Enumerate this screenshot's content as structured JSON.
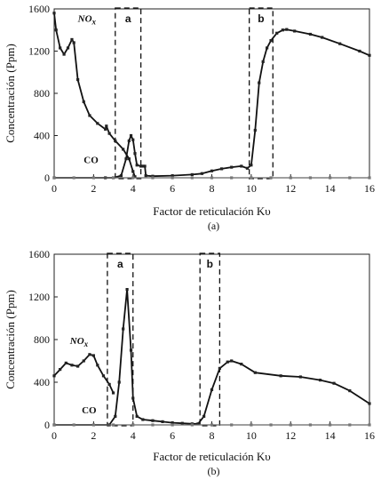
{
  "chart_data": [
    {
      "type": "line",
      "caption": "(a)",
      "xlabel": "Factor de reticulación Kυ",
      "ylabel": "Concentración (Ppm)",
      "xlim": [
        0,
        16
      ],
      "ylim": [
        0,
        1600
      ],
      "x_ticks": [
        "0",
        "2",
        "4",
        "6",
        "8",
        "10",
        "12",
        "14",
        "16"
      ],
      "y_ticks": [
        "0",
        "400",
        "800",
        "1200",
        "1600"
      ],
      "grid": false,
      "series": [
        {
          "name": "NOx",
          "x": [
            0,
            0.1,
            0.3,
            0.5,
            0.7,
            0.9,
            1.0,
            1.2,
            1.5,
            1.8,
            2.2,
            2.6,
            2.65,
            2.8,
            3.1,
            3.5,
            3.8,
            4.0,
            4.1
          ],
          "y": [
            1560,
            1400,
            1230,
            1170,
            1230,
            1310,
            1280,
            930,
            720,
            590,
            515,
            460,
            490,
            420,
            350,
            270,
            180,
            60,
            10
          ]
        },
        {
          "name": "CO",
          "x": [
            0,
            2.6,
            3.0,
            3.4,
            3.65,
            3.8,
            3.9,
            4.0,
            4.1,
            4.2,
            4.4,
            4.5,
            4.6,
            4.65,
            5.0,
            6.0,
            7.0,
            7.5,
            8.0,
            8.5,
            9.0,
            9.5,
            9.8,
            10.0,
            10.2,
            10.4,
            10.6,
            10.8,
            11.0,
            11.3,
            11.6,
            11.8,
            12.2,
            13.0,
            13.6,
            14.5,
            15.5,
            16.0
          ],
          "y": [
            0,
            0,
            0,
            20,
            180,
            350,
            400,
            360,
            230,
            120,
            110,
            110,
            110,
            20,
            15,
            20,
            30,
            40,
            65,
            85,
            100,
            110,
            90,
            120,
            450,
            900,
            1100,
            1230,
            1300,
            1370,
            1400,
            1405,
            1390,
            1360,
            1330,
            1270,
            1200,
            1160
          ]
        },
        {
          "name": "",
          "x": [
            0,
            1,
            2,
            3,
            4,
            5,
            6,
            7,
            8,
            9,
            10,
            11,
            12,
            13,
            14,
            15,
            16
          ],
          "y": [
            0,
            0,
            0,
            0,
            0,
            0,
            0,
            0,
            0,
            0,
            0,
            0,
            0,
            0,
            0,
            0,
            0
          ]
        }
      ],
      "labels": [
        {
          "text": "NO",
          "sub": "x",
          "x": 1.2,
          "y": 1480
        },
        {
          "text": "CO",
          "x": 1.5,
          "y": 140
        }
      ],
      "regions": [
        {
          "label": "a",
          "x": [
            3.1,
            4.4
          ]
        },
        {
          "label": "b",
          "x": [
            9.9,
            11.1
          ]
        }
      ]
    },
    {
      "type": "line",
      "caption": "(b)",
      "xlabel": "Factor de reticulación Kυ",
      "ylabel": "Concentración (Ppm)",
      "xlim": [
        0,
        16
      ],
      "ylim": [
        0,
        1600
      ],
      "x_ticks": [
        "0",
        "2",
        "4",
        "6",
        "8",
        "10",
        "12",
        "14",
        "16"
      ],
      "y_ticks": [
        "0",
        "400",
        "800",
        "1200",
        "1600"
      ],
      "grid": false,
      "series": [
        {
          "name": "NOx",
          "x": [
            0,
            0.3,
            0.6,
            0.9,
            1.2,
            1.5,
            1.8,
            2.0,
            2.2,
            2.5,
            2.8,
            3.0
          ],
          "y": [
            460,
            520,
            580,
            560,
            550,
            600,
            660,
            650,
            560,
            460,
            380,
            300
          ]
        },
        {
          "name": "CO",
          "x": [
            0,
            2.8,
            3.1,
            3.3,
            3.5,
            3.7,
            3.9,
            4.0,
            4.2,
            4.5,
            5.0,
            5.5,
            6.0,
            6.5,
            7.0,
            7.3,
            7.6,
            8.0,
            8.4,
            8.8,
            9.0,
            9.5,
            10.2,
            11.5,
            12.5,
            13.5,
            14.2,
            15.0,
            16.0
          ],
          "y": [
            0,
            0,
            80,
            400,
            900,
            1270,
            700,
            250,
            80,
            50,
            40,
            30,
            20,
            15,
            10,
            10,
            80,
            330,
            530,
            590,
            600,
            570,
            490,
            460,
            450,
            420,
            390,
            320,
            200
          ]
        },
        {
          "name": "",
          "x": [
            0,
            1,
            2,
            3,
            4,
            5,
            6,
            7,
            8,
            9,
            10,
            11,
            12,
            13,
            14,
            15,
            16
          ],
          "y": [
            0,
            0,
            0,
            0,
            0,
            0,
            0,
            0,
            0,
            0,
            0,
            0,
            0,
            0,
            0,
            0,
            0
          ]
        }
      ],
      "labels": [
        {
          "text": "NO",
          "sub": "x",
          "x": 0.8,
          "y": 760
        },
        {
          "text": "CO",
          "x": 1.4,
          "y": 110
        }
      ],
      "regions": [
        {
          "label": "a",
          "x": [
            2.7,
            4.0
          ]
        },
        {
          "label": "b",
          "x": [
            7.4,
            8.4
          ]
        }
      ]
    }
  ]
}
